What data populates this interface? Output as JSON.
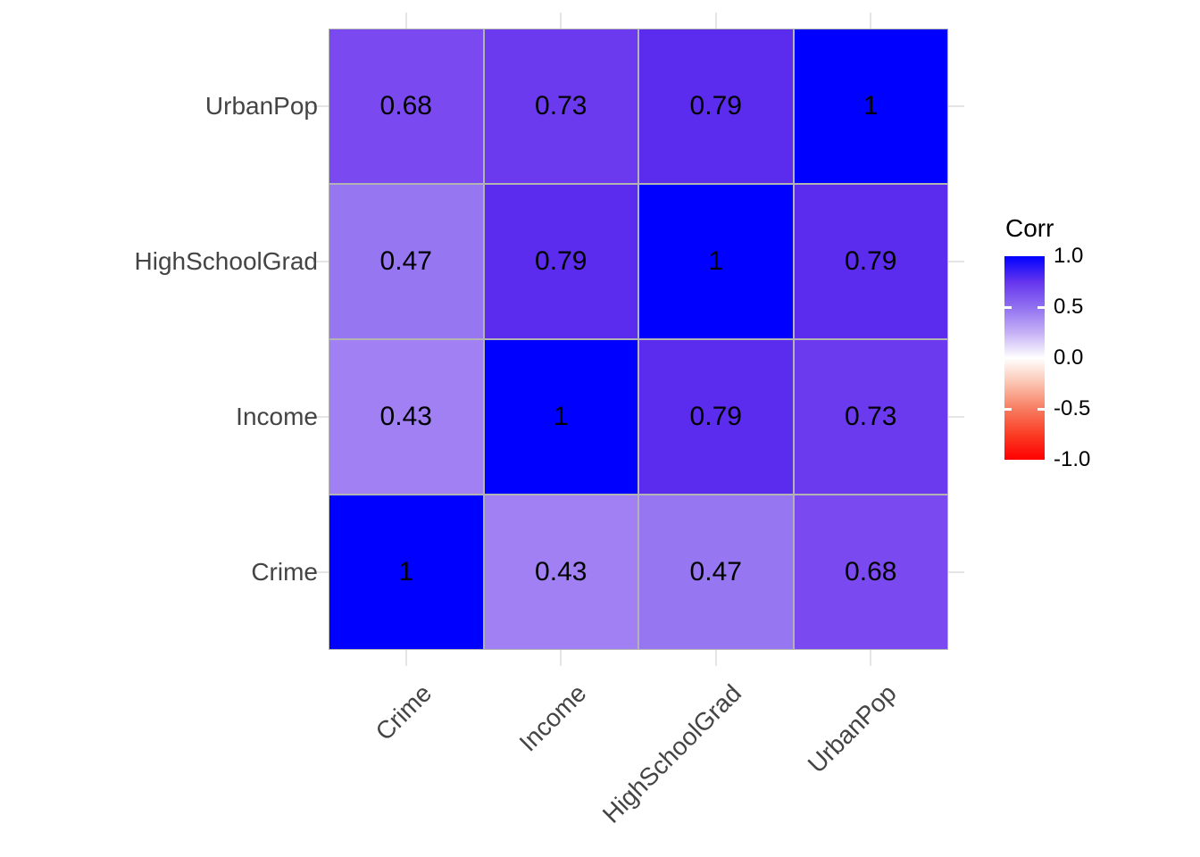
{
  "chart_data": {
    "type": "heatmap",
    "title": "",
    "legend_title": "Corr",
    "x_categories": [
      "Crime",
      "Income",
      "HighSchoolGrad",
      "UrbanPop"
    ],
    "y_categories_top_to_bottom": [
      "UrbanPop",
      "HighSchoolGrad",
      "Income",
      "Crime"
    ],
    "series": [
      {
        "name": "UrbanPop",
        "values": [
          0.68,
          0.73,
          0.79,
          1
        ]
      },
      {
        "name": "HighSchoolGrad",
        "values": [
          0.47,
          0.79,
          1,
          0.79
        ]
      },
      {
        "name": "Income",
        "values": [
          0.43,
          1,
          0.79,
          0.73
        ]
      },
      {
        "name": "Crime",
        "values": [
          1,
          0.43,
          0.47,
          0.68
        ]
      }
    ],
    "cells": [
      {
        "row": "UrbanPop",
        "col": "Crime",
        "label": "0.68",
        "color": "#7B49F0"
      },
      {
        "row": "UrbanPop",
        "col": "Income",
        "label": "0.73",
        "color": "#6B3AEF"
      },
      {
        "row": "UrbanPop",
        "col": "HighSchoolGrad",
        "label": "0.79",
        "color": "#5B2BEE"
      },
      {
        "row": "UrbanPop",
        "col": "UrbanPop",
        "label": "1",
        "color": "#0000FF"
      },
      {
        "row": "HighSchoolGrad",
        "col": "Crime",
        "label": "0.47",
        "color": "#9776F1"
      },
      {
        "row": "HighSchoolGrad",
        "col": "Income",
        "label": "0.79",
        "color": "#5B2BEE"
      },
      {
        "row": "HighSchoolGrad",
        "col": "HighSchoolGrad",
        "label": "1",
        "color": "#0000FF"
      },
      {
        "row": "HighSchoolGrad",
        "col": "UrbanPop",
        "label": "0.79",
        "color": "#5B2BEE"
      },
      {
        "row": "Income",
        "col": "Crime",
        "label": "0.43",
        "color": "#A080F2"
      },
      {
        "row": "Income",
        "col": "Income",
        "label": "1",
        "color": "#0000FF"
      },
      {
        "row": "Income",
        "col": "HighSchoolGrad",
        "label": "0.79",
        "color": "#5B2BEE"
      },
      {
        "row": "Income",
        "col": "UrbanPop",
        "label": "0.73",
        "color": "#6B3AEF"
      },
      {
        "row": "Crime",
        "col": "Crime",
        "label": "1",
        "color": "#0000FF"
      },
      {
        "row": "Crime",
        "col": "Income",
        "label": "0.43",
        "color": "#A080F2"
      },
      {
        "row": "Crime",
        "col": "HighSchoolGrad",
        "label": "0.47",
        "color": "#9776F1"
      },
      {
        "row": "Crime",
        "col": "UrbanPop",
        "label": "0.68",
        "color": "#7B49F0"
      }
    ],
    "colorbar": {
      "range": [
        -1,
        1
      ],
      "tick_labels": [
        "1.0",
        "0.5",
        "0.0",
        "-0.5",
        "-1.0"
      ],
      "gradient_stops": [
        {
          "pos": 0,
          "color": "#0000FF"
        },
        {
          "pos": 12.5,
          "color": "#6434EE"
        },
        {
          "pos": 25,
          "color": "#9170F1"
        },
        {
          "pos": 37.5,
          "color": "#C5B0F6"
        },
        {
          "pos": 50,
          "color": "#FFFFFF"
        },
        {
          "pos": 62.5,
          "color": "#FBC3AF"
        },
        {
          "pos": 75,
          "color": "#F87C60"
        },
        {
          "pos": 87.5,
          "color": "#FA3D25"
        },
        {
          "pos": 100,
          "color": "#FF0000"
        }
      ]
    },
    "colors": {
      "high": "#0000FF",
      "mid": "#FFFFFF",
      "low": "#FF0000",
      "tile_border": "#B3B3B3",
      "axis_text": "#444444",
      "gridline": "#E5E5E5",
      "cell_text": "#000000"
    },
    "layout_hints": {
      "legend_position": "right",
      "x_label_angle_deg": 45,
      "grid": "minimal-theme margins only"
    }
  }
}
